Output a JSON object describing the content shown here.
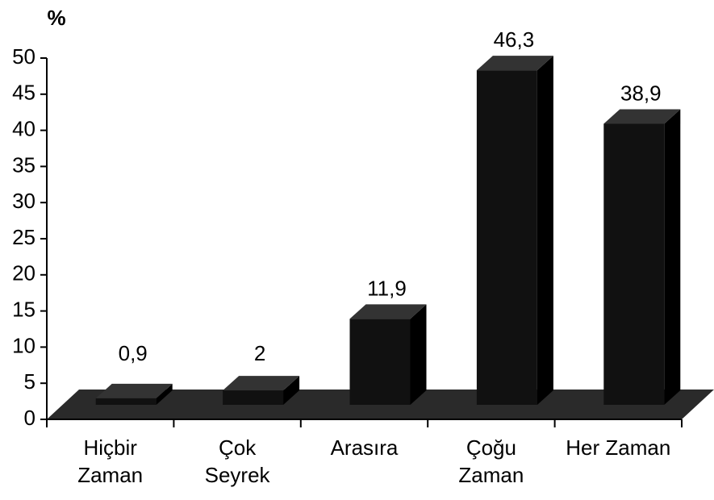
{
  "chart_data": {
    "type": "bar3d",
    "ylabel": "%",
    "categories": [
      "Hiçbir\nZaman",
      "Çok\nSeyrek",
      "Arasıra",
      "Çoğu\nZaman",
      "Her Zaman"
    ],
    "values": [
      0.9,
      2,
      11.9,
      46.3,
      38.9
    ],
    "value_labels": [
      "0,9",
      "2",
      "11,9",
      "46,3",
      "38,9"
    ],
    "color": "#111111",
    "ylim": [
      0,
      50
    ],
    "yticks": [
      0,
      5,
      10,
      15,
      20,
      25,
      30,
      35,
      40,
      45,
      50
    ]
  }
}
